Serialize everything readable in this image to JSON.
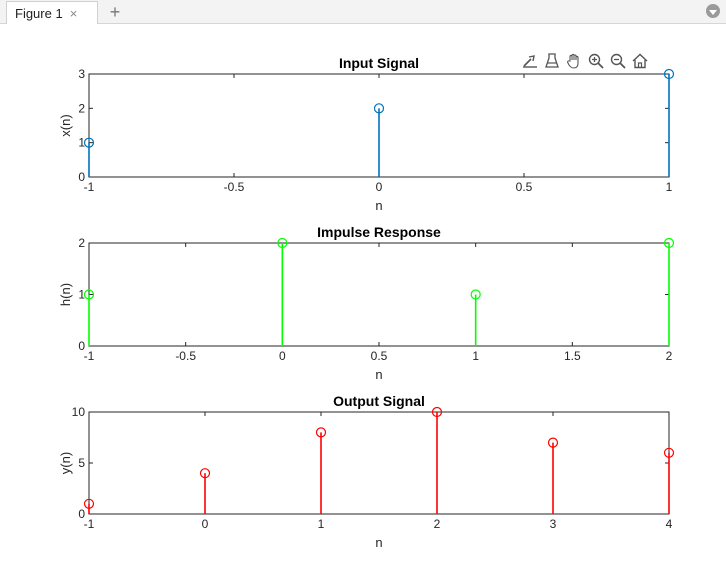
{
  "tab": {
    "title": "Figure 1",
    "close_glyph": "×",
    "add_glyph": "+"
  },
  "toolbar": {
    "icons": [
      "export-icon",
      "brush-icon",
      "pan-hand-icon",
      "zoom-in-icon",
      "zoom-out-icon",
      "home-icon"
    ]
  },
  "chart_data": [
    {
      "type": "stem",
      "title": "Input Signal",
      "xlabel": "n",
      "ylabel": "x(n)",
      "xlim": [
        -1,
        1
      ],
      "ylim": [
        0,
        3
      ],
      "xticks": [
        -1,
        -0.5,
        0,
        0.5,
        1
      ],
      "xtick_labels": [
        "-1",
        "-0.5",
        "0",
        "0.5",
        "1"
      ],
      "yticks": [
        0,
        1,
        2,
        3
      ],
      "ytick_labels": [
        "0",
        "1",
        "2",
        "3"
      ],
      "x": [
        -1,
        0,
        1
      ],
      "y": [
        1,
        2,
        3
      ],
      "color": "#0072BD"
    },
    {
      "type": "stem",
      "title": "Impulse Response",
      "xlabel": "n",
      "ylabel": "h(n)",
      "xlim": [
        -1,
        2
      ],
      "ylim": [
        0,
        2
      ],
      "xticks": [
        -1,
        -0.5,
        0,
        0.5,
        1,
        1.5,
        2
      ],
      "xtick_labels": [
        "-1",
        "-0.5",
        "0",
        "0.5",
        "1",
        "1.5",
        "2"
      ],
      "yticks": [
        0,
        1,
        2
      ],
      "ytick_labels": [
        "0",
        "1",
        "2"
      ],
      "x": [
        -1,
        0,
        1,
        2
      ],
      "y": [
        1,
        2,
        1,
        2
      ],
      "color": "#00FF00"
    },
    {
      "type": "stem",
      "title": "Output Signal",
      "xlabel": "n",
      "ylabel": "y(n)",
      "xlim": [
        -1,
        4
      ],
      "ylim": [
        0,
        10
      ],
      "xticks": [
        -1,
        0,
        1,
        2,
        3,
        4
      ],
      "xtick_labels": [
        "-1",
        "0",
        "1",
        "2",
        "3",
        "4"
      ],
      "yticks": [
        0,
        5,
        10
      ],
      "ytick_labels": [
        "0",
        "5",
        "10"
      ],
      "x": [
        -1,
        0,
        1,
        2,
        3,
        4
      ],
      "y": [
        1,
        4,
        8,
        10,
        7,
        6
      ],
      "color": "#FF0000"
    }
  ]
}
